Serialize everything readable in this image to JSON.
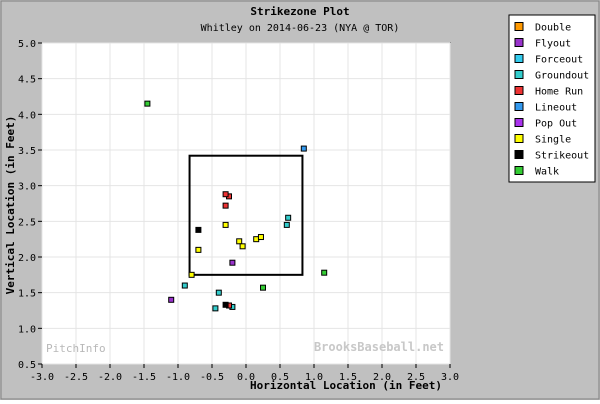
{
  "chart_data": {
    "type": "scatter",
    "title": "Strikezone Plot",
    "subtitle": "Whitley on 2014-06-23 (NYA @ TOR)",
    "xlabel": "Horizontal Location (in Feet)",
    "ylabel": "Vertical Location (in Feet)",
    "xlim": [
      -3.0,
      3.0
    ],
    "ylim": [
      0.5,
      5.0
    ],
    "xticks": [
      "-3.0",
      "-2.5",
      "-2.0",
      "-1.5",
      "-1.0",
      "-0.5",
      "0.0",
      "0.5",
      "1.0",
      "1.5",
      "2.0",
      "2.5",
      "3.0"
    ],
    "yticks": [
      "0.5",
      "1.0",
      "1.5",
      "2.0",
      "2.5",
      "3.0",
      "3.5",
      "4.0",
      "4.5",
      "5.0"
    ],
    "grid": true,
    "legend_position": "right",
    "strike_zone": {
      "x": [
        -0.83,
        0.83
      ],
      "y": [
        1.75,
        3.42
      ]
    },
    "watermark_left": "PitchInfo",
    "watermark_right": "BrooksBaseball.net",
    "series": [
      {
        "name": "Double",
        "color": "#ff9900",
        "points": []
      },
      {
        "name": "Flyout",
        "color": "#9933cc",
        "points": [
          [
            -0.2,
            1.92
          ],
          [
            -1.1,
            1.4
          ]
        ]
      },
      {
        "name": "Forceout",
        "color": "#33ccee",
        "points": []
      },
      {
        "name": "Groundout",
        "color": "#33cccc",
        "points": [
          [
            -0.2,
            1.3
          ],
          [
            -0.45,
            1.28
          ],
          [
            -0.4,
            1.5
          ],
          [
            -0.9,
            1.6
          ],
          [
            0.6,
            2.45
          ],
          [
            0.62,
            2.55
          ]
        ]
      },
      {
        "name": "Home Run",
        "color": "#ee3333",
        "points": [
          [
            -0.25,
            2.85
          ],
          [
            -0.3,
            2.88
          ],
          [
            -0.3,
            2.72
          ],
          [
            -0.25,
            1.32
          ]
        ]
      },
      {
        "name": "Lineout",
        "color": "#3399ee",
        "points": [
          [
            0.85,
            3.52
          ]
        ]
      },
      {
        "name": "Pop Out",
        "color": "#aa33ee",
        "points": []
      },
      {
        "name": "Single",
        "color": "#ffff00",
        "points": [
          [
            -0.3,
            2.45
          ],
          [
            -0.8,
            1.75
          ],
          [
            -0.7,
            2.1
          ],
          [
            0.15,
            2.25
          ],
          [
            0.22,
            2.28
          ],
          [
            -0.1,
            2.22
          ],
          [
            -0.05,
            2.15
          ]
        ]
      },
      {
        "name": "Strikeout",
        "color": "#000000",
        "points": [
          [
            -0.7,
            2.38
          ],
          [
            -0.3,
            1.33
          ]
        ]
      },
      {
        "name": "Walk",
        "color": "#33cc33",
        "points": [
          [
            -1.45,
            4.15
          ],
          [
            1.15,
            1.78
          ],
          [
            0.25,
            1.57
          ]
        ]
      }
    ]
  }
}
